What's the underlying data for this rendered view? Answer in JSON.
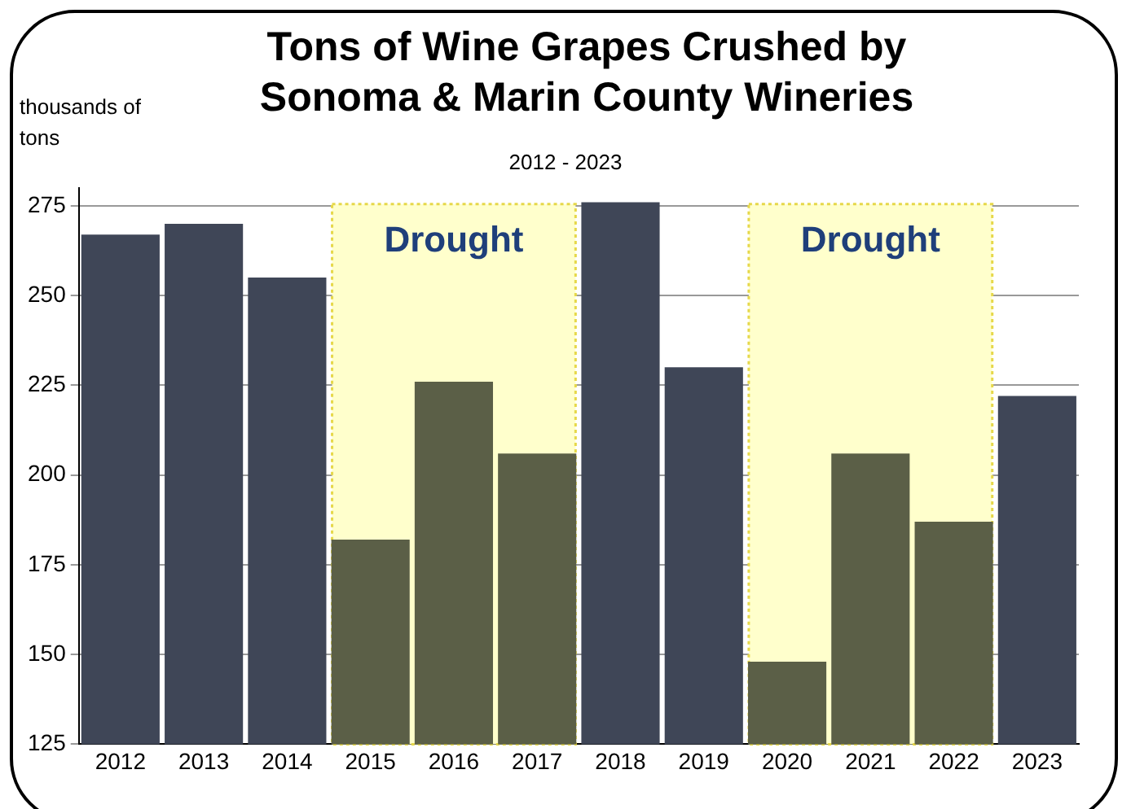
{
  "chart_data": {
    "type": "bar",
    "title": "Tons of Wine Grapes Crushed by Sonoma & Marin County Wineries",
    "subtitle": "2012 - 2023",
    "ylabel": "thousands of tons",
    "categories": [
      "2012",
      "2013",
      "2014",
      "2015",
      "2016",
      "2017",
      "2018",
      "2019",
      "2020",
      "2021",
      "2022",
      "2023"
    ],
    "values": [
      267,
      270,
      255,
      182,
      226,
      206,
      276,
      230,
      148,
      206,
      187,
      222
    ],
    "colors": [
      "#3f4657",
      "#3f4657",
      "#3f4657",
      "#5b5f47",
      "#5b5f47",
      "#5b5f47",
      "#3f4657",
      "#3f4657",
      "#5b5f47",
      "#5b5f47",
      "#5b5f47",
      "#3f4657"
    ],
    "ylim": [
      125,
      280
    ],
    "yticks": [
      125,
      150,
      175,
      200,
      225,
      250,
      275
    ],
    "grid": "y",
    "legend": false,
    "bands": [
      {
        "axis": "x",
        "from": "2015",
        "to": "2017",
        "label": "Drought",
        "color": "#ffffcc"
      },
      {
        "axis": "x",
        "from": "2020",
        "to": "2022",
        "label": "Drought",
        "color": "#ffffcc"
      }
    ]
  }
}
